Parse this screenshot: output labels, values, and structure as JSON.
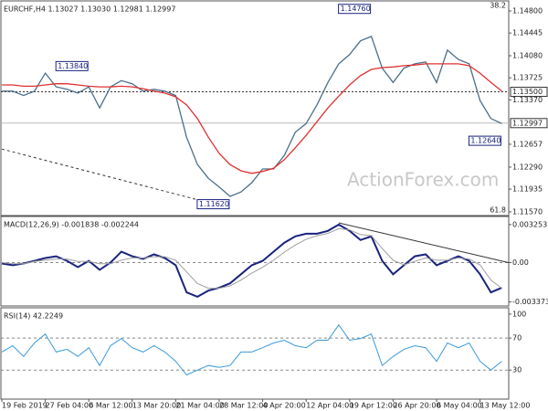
{
  "chart_data": [
    {
      "type": "line",
      "title": "EURCHF,H4  1.13027 1.13030 1.12981 1.12997",
      "watermark": "ActionForex.com",
      "ylim": [
        1.11555,
        1.14932
      ],
      "yticks": [
        {
          "value": 1.148,
          "label": "1.14800"
        },
        {
          "value": 1.14445,
          "label": "1.14445"
        },
        {
          "value": 1.1408,
          "label": "1.14080"
        },
        {
          "value": 1.13725,
          "label": "1.13725"
        },
        {
          "value": 1.1337,
          "label": "1.13370"
        },
        {
          "value": 1.12657,
          "label": "1.12657"
        },
        {
          "value": 1.1229,
          "label": "1.12290"
        },
        {
          "value": 1.11935,
          "label": "1.11935"
        },
        {
          "value": 1.1157,
          "label": "1.11570"
        }
      ],
      "hline": {
        "value": 1.135,
        "label": "1.13500"
      },
      "last_price": {
        "value": 1.12997,
        "label": "1.12997"
      },
      "fib_labels": [
        38.2,
        61.8
      ],
      "series": [
        {
          "name": "EURCHF",
          "color": "#4a6f8a",
          "values": [
            1.1351,
            1.1351,
            1.1344,
            1.1351,
            1.138,
            1.1358,
            1.1354,
            1.1348,
            1.1358,
            1.1324,
            1.1358,
            1.1368,
            1.1363,
            1.1351,
            1.1354,
            1.1351,
            1.1344,
            1.1277,
            1.1233,
            1.1211,
            1.1197,
            1.1182,
            1.1189,
            1.1204,
            1.1226,
            1.1226,
            1.1248,
            1.1285,
            1.1299,
            1.1329,
            1.1365,
            1.1395,
            1.141,
            1.1432,
            1.1439,
            1.1388,
            1.1365,
            1.1388,
            1.1395,
            1.1398,
            1.1365,
            1.1417,
            1.1402,
            1.1395,
            1.1336,
            1.1307,
            1.1299
          ]
        },
        {
          "name": "MA",
          "color": "#e03030",
          "values": [
            1.1361,
            1.1361,
            1.1359,
            1.1359,
            1.1361,
            1.1363,
            1.1363,
            1.1361,
            1.1359,
            1.1358,
            1.1358,
            1.1359,
            1.1358,
            1.1355,
            1.1351,
            1.1348,
            1.1342,
            1.1329,
            1.1307,
            1.1277,
            1.1251,
            1.1233,
            1.1223,
            1.1219,
            1.1222,
            1.1227,
            1.1241,
            1.126,
            1.128,
            1.1302,
            1.1324,
            1.1343,
            1.1361,
            1.1376,
            1.1386,
            1.1389,
            1.139,
            1.1392,
            1.1393,
            1.1395,
            1.1395,
            1.1395,
            1.1395,
            1.1392,
            1.138,
            1.1365,
            1.1351
          ]
        }
      ],
      "annotations": [
        {
          "label": "1.13840",
          "value": 1.1384,
          "x": 8
        },
        {
          "label": "1.14760",
          "value": 1.1476,
          "x": 34
        },
        {
          "label": "1.11620",
          "value": 1.1162,
          "x": 21
        },
        {
          "label": "1.12640",
          "value": 1.1264,
          "x": 46
        }
      ],
      "trendlines": [
        {
          "x": [
            0,
            21
          ],
          "y": [
            1.1258,
            1.1163
          ]
        }
      ]
    },
    {
      "type": "line",
      "title": "MACD(12,26,9) -0.001838 -0.002244",
      "ylim": [
        -0.00356,
        0.00379
      ],
      "yticks": [
        0.003253,
        {
          "value": 0,
          "label": "0.00"
        },
        -0.003373
      ],
      "levels": [
        0
      ],
      "series": [
        {
          "name": "MACD",
          "color": "#1a237e",
          "width": 2,
          "values": [
            -8e-05,
            -0.00023,
            -8e-05,
            0.00015,
            0.00039,
            0.00054,
            0.00015,
            -0.00039,
            0.00015,
            -0.00062,
            0,
            0.00093,
            0.00054,
            0.00031,
            0.0007,
            0.00039,
            -0.00023,
            -0.00255,
            -0.00293,
            -0.0024,
            -0.00216,
            -0.00178,
            -0.001,
            -0.00023,
            0.00015,
            0.00093,
            0.0017,
            0.00224,
            0.00247,
            0.00247,
            0.00271,
            0.00325,
            0.00271,
            0.00193,
            0.00224,
            0.00015,
            -0.001,
            -0.00023,
            0.00054,
            0.0007,
            -0.00023,
            0.00015,
            0.00054,
            0.00015,
            -0.001,
            -0.00255,
            -0.00216
          ]
        },
        {
          "name": "Signal",
          "color": "#9e9e9e",
          "width": 1,
          "values": [
            0,
            -0.0001,
            -0.0001,
            0.0001,
            0.0002,
            0.0003,
            0.0003,
            0.0001,
            0.0001,
            -0.0001,
            -0.0001,
            0.0002,
            0.0004,
            0.0004,
            0.0005,
            0.0005,
            0.0002,
            -0.0008,
            -0.0018,
            -0.0022,
            -0.0022,
            -0.002,
            -0.0015,
            -0.0009,
            -0.0004,
            0.0002,
            0.0009,
            0.0015,
            0.002,
            0.0023,
            0.0025,
            0.0029,
            0.0028,
            0.0024,
            0.0023,
            0.0012,
            0.0002,
            -0.0002,
            0.0001,
            0.0004,
            0.0002,
            0.0002,
            0.0004,
            0.0003,
            -0.0002,
            -0.0015,
            -0.0022
          ]
        }
      ],
      "trendlines": [
        {
          "x": [
            31,
            46.6
          ],
          "y": [
            0.0034,
            0
          ]
        }
      ]
    },
    {
      "type": "line",
      "title": "RSI(14) 42.2249",
      "ylim": [
        -4,
        105.6
      ],
      "yticks": [
        100,
        70,
        30
      ],
      "levels": [
        70,
        30
      ],
      "categories": [
        "19 Feb 2019",
        null,
        null,
        null,
        "27 Feb 04:00",
        null,
        null,
        null,
        "6 Mar 12:00",
        null,
        null,
        null,
        "13 Mar 20:00",
        null,
        null,
        null,
        "21 Mar 04:00",
        null,
        null,
        null,
        "28 Mar 12:00",
        null,
        null,
        null,
        "4 Apr 20:00",
        null,
        null,
        null,
        "12 Apr 04:00",
        null,
        null,
        null,
        "19 Apr 12:00",
        null,
        null,
        null,
        "26 Apr 20:00",
        null,
        null,
        null,
        "6 May 04:00",
        null,
        null,
        null,
        "13 May 12:00",
        null,
        null
      ],
      "series": [
        {
          "name": "RSI",
          "color": "#3a9ad9",
          "width": 1,
          "values": [
            52.6,
            60.5,
            47,
            63.9,
            75,
            52.6,
            56,
            47,
            58,
            35.7,
            60.5,
            69.5,
            58,
            52.6,
            60.5,
            52.6,
            41,
            24,
            30,
            35.7,
            33.4,
            35.7,
            52.6,
            52.6,
            58,
            63.9,
            67.3,
            60.5,
            58,
            67.3,
            67.3,
            86.5,
            67.3,
            69.5,
            75,
            35.7,
            47,
            56,
            60.5,
            58,
            41,
            63.9,
            58,
            63.9,
            41,
            30,
            41
          ]
        }
      ]
    }
  ]
}
